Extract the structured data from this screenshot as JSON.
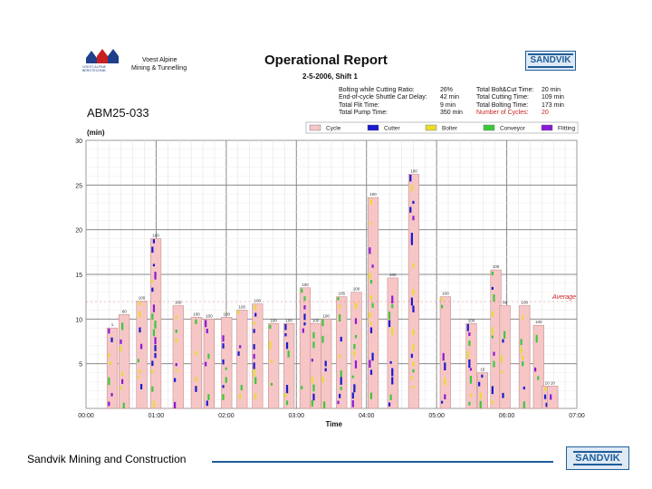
{
  "header": {
    "company_line1": "Voest Alpine",
    "company_line2": "Mining & Tunnelling",
    "logo_text1": "VOEST-ALPINE",
    "logo_text2": "BERGTECHNIK",
    "title": "Operational Report",
    "subtitle": "2-5-2006, Shift 1",
    "brand": "SANDVIK"
  },
  "stats": [
    {
      "label": "Bolting while Cutting Ratio:",
      "value": "26%",
      "label2": "Total Bolt&Cut Time:",
      "value2": "20 min"
    },
    {
      "label": "End-of-cycle Shuttle Car Delay:",
      "value": "42 min",
      "label2": "Total Cutting Time:",
      "value2": "109 min"
    },
    {
      "label": "Total Flit Time:",
      "value": "9 min",
      "label2": "Total Bolting Time:",
      "value2": "173 min"
    },
    {
      "label": "Total Pump Time:",
      "value": "350 min",
      "label2": "Number of Cycles:",
      "value2": "20"
    }
  ],
  "machine": "ABM25-033",
  "footer": {
    "text": "Sandvik Mining and Construction",
    "brand": "SANDVIK"
  },
  "colors": {
    "cycle": "#f6c6c6",
    "cutter": "#1a1ad0",
    "bolter": "#e8dc30",
    "conveyor": "#3cc83c",
    "flitting": "#8a1ad8",
    "average": "#d42020",
    "brand": "#1f5d9a"
  },
  "chart_data": {
    "type": "bar",
    "title": "Operational Report",
    "ylabel": "(min)",
    "xlabel": "Time",
    "ylim": [
      0,
      30
    ],
    "yticks": [
      5,
      10,
      15,
      20,
      25,
      30
    ],
    "xlim_hours": [
      0,
      7
    ],
    "xticks": [
      "00:00",
      "01:00",
      "02:00",
      "03:00",
      "04:00",
      "05:00",
      "06:00",
      "07:00"
    ],
    "average": {
      "label": "Average",
      "value": 12
    },
    "legend": [
      "Cycle",
      "Cutter",
      "Bolter",
      "Conveyor",
      "Flitting"
    ],
    "cycles": [
      {
        "start": 0.3,
        "value": 9,
        "label": "1"
      },
      {
        "start": 0.47,
        "value": 10.5,
        "label": "60"
      },
      {
        "start": 0.72,
        "value": 12,
        "label": "100"
      },
      {
        "start": 0.92,
        "value": 19,
        "label": "100"
      },
      {
        "start": 1.24,
        "value": 11.5,
        "label": "100"
      },
      {
        "start": 1.5,
        "value": 10.2,
        "label": "100"
      },
      {
        "start": 1.68,
        "value": 10,
        "label": "100"
      },
      {
        "start": 1.93,
        "value": 10.2,
        "label": "100"
      },
      {
        "start": 2.15,
        "value": 11,
        "label": "100"
      },
      {
        "start": 2.37,
        "value": 11.7,
        "label": "100"
      },
      {
        "start": 2.6,
        "value": 9.5,
        "label": "100"
      },
      {
        "start": 2.82,
        "value": 9.5,
        "label": "100"
      },
      {
        "start": 3.05,
        "value": 13.5,
        "label": "100"
      },
      {
        "start": 3.2,
        "value": 9.5,
        "label": "100"
      },
      {
        "start": 3.35,
        "value": 10,
        "label": "100"
      },
      {
        "start": 3.57,
        "value": 12.5,
        "label": "105"
      },
      {
        "start": 3.78,
        "value": 13,
        "label": "100"
      },
      {
        "start": 4.02,
        "value": 23.6,
        "label": "100"
      },
      {
        "start": 4.3,
        "value": 14.6,
        "label": "100"
      },
      {
        "start": 4.6,
        "value": 26.2,
        "label": "100"
      },
      {
        "start": 5.05,
        "value": 12.5,
        "label": "100"
      },
      {
        "start": 5.42,
        "value": 9.5,
        "label": "100"
      },
      {
        "start": 5.58,
        "value": 4,
        "label": "15"
      },
      {
        "start": 5.77,
        "value": 15.5,
        "label": "100"
      },
      {
        "start": 5.9,
        "value": 11.5,
        "label": "99"
      },
      {
        "start": 6.18,
        "value": 11.5,
        "label": "100"
      },
      {
        "start": 6.38,
        "value": 9.3,
        "label": "100"
      },
      {
        "start": 6.5,
        "value": 2.5,
        "label": "10"
      },
      {
        "start": 6.58,
        "value": 2.5,
        "label": "10"
      }
    ]
  }
}
